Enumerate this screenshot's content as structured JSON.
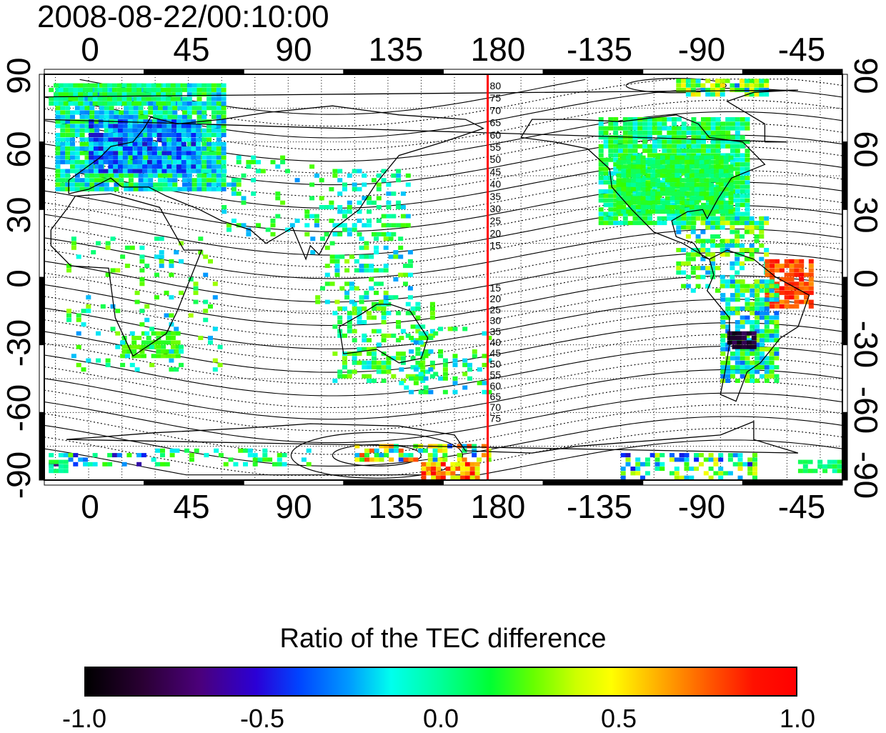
{
  "title": "2008-08-22/00:10:00",
  "map": {
    "projection": "equirectangular",
    "lon_range": [
      -20,
      340
    ],
    "lat_range": [
      -90,
      90
    ],
    "lon_ticks": [
      "0",
      "45",
      "90",
      "135",
      "180",
      "-135",
      "-90",
      "-45"
    ],
    "lat_ticks": [
      "90",
      "60",
      "30",
      "0",
      "-30",
      "-60",
      "-90"
    ],
    "lat_ticks_right": [
      "90",
      "60",
      "30",
      "0",
      "-30",
      "-60",
      "-90"
    ],
    "terminator_longitude": 180,
    "terminator_color": "#ff0000",
    "contour_labels_north": [
      "80",
      "75",
      "70",
      "65",
      "60",
      "55",
      "50",
      "45",
      "40",
      "35",
      "30",
      "25",
      "20",
      "15"
    ],
    "contour_labels_south": [
      "15",
      "20",
      "25",
      "30",
      "35",
      "40",
      "45",
      "50",
      "55",
      "60",
      "65",
      "70",
      "75"
    ],
    "grid": "dotted"
  },
  "colorbar": {
    "title": "Ratio of the TEC difference",
    "min": -1.0,
    "max": 1.0,
    "ticks": [
      "-1.0",
      "-0.5",
      "0.0",
      "0.5",
      "1.0"
    ],
    "colormap": "black-purple-blue-cyan-green-yellow-red"
  }
}
